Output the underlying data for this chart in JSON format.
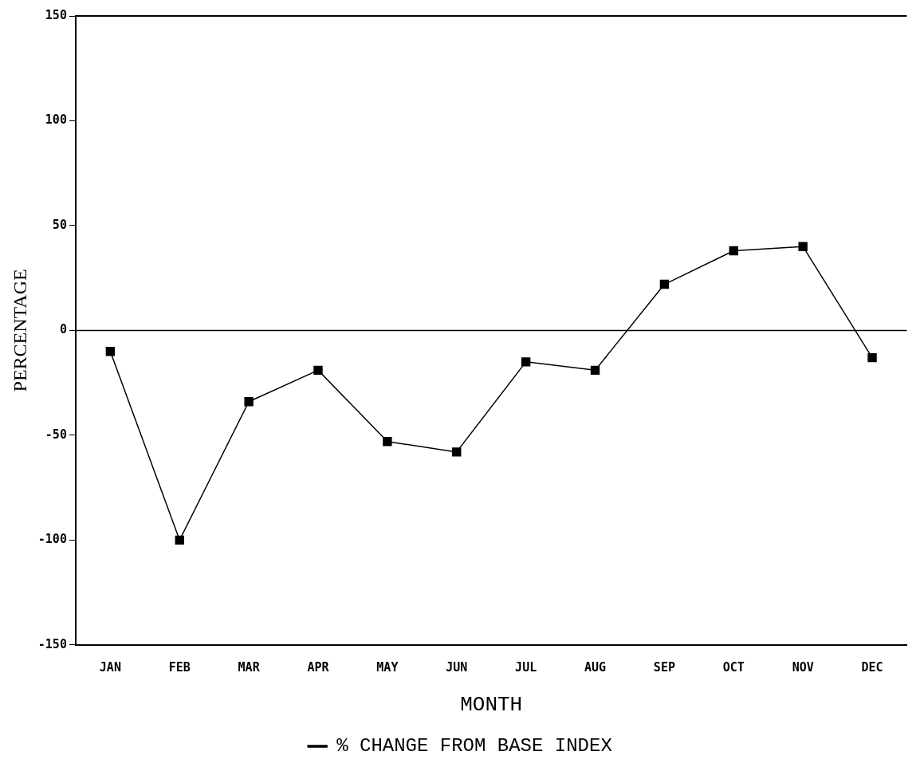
{
  "chart_data": {
    "type": "line",
    "xlabel": "MONTH",
    "ylabel": "PERCENTAGE",
    "categories": [
      "JAN",
      "FEB",
      "MAR",
      "APR",
      "MAY",
      "JUN",
      "JUL",
      "AUG",
      "SEP",
      "OCT",
      "NOV",
      "DEC"
    ],
    "series": [
      {
        "name": "% CHANGE FROM BASE INDEX",
        "color": "#000000",
        "values": [
          -10,
          -100,
          -34,
          -19,
          -53,
          -58,
          -15,
          -19,
          22,
          38,
          40,
          -13
        ]
      }
    ],
    "ylim": [
      -150,
      150
    ],
    "yticks": [
      -150,
      -100,
      -50,
      0,
      50,
      100,
      150
    ],
    "ref_lines": [
      {
        "axis": "y",
        "value": 0,
        "color": "#000000"
      }
    ],
    "grid": false,
    "legend": "bottom",
    "marker": "square",
    "line_style": "solid"
  }
}
